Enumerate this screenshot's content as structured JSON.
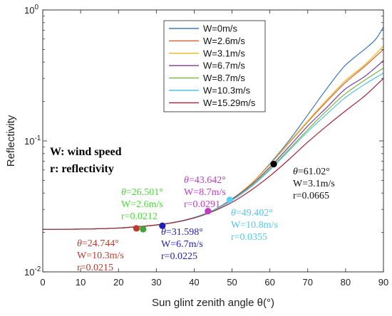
{
  "chart_data": {
    "type": "line",
    "xlabel": "Sun glint zenith angle θ(°)",
    "ylabel": "Reflectivity",
    "xlim": [
      0,
      90
    ],
    "ylim": [
      0.01,
      1
    ],
    "y_scale": "log",
    "grid": false,
    "legend_position": "top-right",
    "x_ticks": [
      "0",
      "10",
      "20",
      "30",
      "40",
      "50",
      "60",
      "70",
      "80",
      "90"
    ],
    "y_ticks": [
      {
        "value": 0.01,
        "base": "10",
        "exp": "-2"
      },
      {
        "value": 0.1,
        "base": "10",
        "exp": "-1"
      },
      {
        "value": 1,
        "base": "10",
        "exp": "0"
      }
    ],
    "series": [
      {
        "name": "W=0m/s",
        "color": "#3e78c0",
        "x": [
          0,
          10,
          20,
          25,
          30,
          35,
          40,
          45,
          50,
          55,
          60,
          65,
          70,
          75,
          80,
          83,
          85,
          88,
          90
        ],
        "y": [
          0.0211,
          0.0212,
          0.0216,
          0.0221,
          0.0228,
          0.024,
          0.026,
          0.0295,
          0.036,
          0.047,
          0.067,
          0.1,
          0.158,
          0.25,
          0.38,
          0.45,
          0.5,
          0.6,
          0.74
        ]
      },
      {
        "name": "W=2.6m/s",
        "color": "#d95f2b",
        "x": [
          0,
          10,
          20,
          25,
          30,
          35,
          40,
          45,
          50,
          55,
          60,
          65,
          70,
          75,
          80,
          85,
          90
        ],
        "y": [
          0.0211,
          0.0212,
          0.0216,
          0.0221,
          0.0228,
          0.024,
          0.026,
          0.0295,
          0.036,
          0.047,
          0.066,
          0.096,
          0.14,
          0.2,
          0.28,
          0.37,
          0.5
        ]
      },
      {
        "name": "W=3.1m/s",
        "color": "#e8b820",
        "x": [
          0,
          10,
          20,
          25,
          30,
          35,
          40,
          45,
          50,
          55,
          60,
          65,
          70,
          75,
          80,
          85,
          90
        ],
        "y": [
          0.0211,
          0.0212,
          0.0216,
          0.0221,
          0.0228,
          0.024,
          0.026,
          0.0295,
          0.036,
          0.047,
          0.066,
          0.097,
          0.142,
          0.205,
          0.29,
          0.38,
          0.53
        ]
      },
      {
        "name": "W=6.7m/s",
        "color": "#7b3a9e",
        "x": [
          0,
          10,
          20,
          25,
          30,
          35,
          40,
          45,
          50,
          55,
          60,
          65,
          70,
          75,
          80,
          85,
          90
        ],
        "y": [
          0.0211,
          0.0212,
          0.0216,
          0.0221,
          0.0228,
          0.024,
          0.026,
          0.0295,
          0.036,
          0.046,
          0.063,
          0.09,
          0.13,
          0.18,
          0.25,
          0.31,
          0.41
        ]
      },
      {
        "name": "W=8.7m/s",
        "color": "#7ab341",
        "x": [
          0,
          10,
          20,
          25,
          30,
          35,
          40,
          45,
          50,
          55,
          60,
          65,
          70,
          75,
          80,
          85,
          90
        ],
        "y": [
          0.0211,
          0.0212,
          0.0216,
          0.0221,
          0.0228,
          0.024,
          0.026,
          0.0295,
          0.0355,
          0.045,
          0.061,
          0.086,
          0.122,
          0.17,
          0.23,
          0.29,
          0.36
        ]
      },
      {
        "name": "W=10.3m/s",
        "color": "#4ec3e6",
        "x": [
          0,
          10,
          20,
          25,
          30,
          35,
          40,
          45,
          50,
          55,
          60,
          65,
          70,
          75,
          80,
          85,
          90
        ],
        "y": [
          0.0211,
          0.0212,
          0.0216,
          0.0221,
          0.0228,
          0.024,
          0.026,
          0.0294,
          0.0352,
          0.0445,
          0.06,
          0.084,
          0.118,
          0.16,
          0.215,
          0.27,
          0.33
        ]
      },
      {
        "name": "W=15.29m/s",
        "color": "#a3243a",
        "x": [
          0,
          10,
          20,
          25,
          30,
          35,
          40,
          45,
          50,
          55,
          60,
          65,
          70,
          75,
          80,
          85,
          90
        ],
        "y": [
          0.0211,
          0.0212,
          0.0216,
          0.0221,
          0.0228,
          0.0239,
          0.0258,
          0.029,
          0.034,
          0.042,
          0.054,
          0.072,
          0.098,
          0.13,
          0.17,
          0.22,
          0.3
        ]
      }
    ],
    "markers": [
      {
        "x": 24.744,
        "y": 0.0215,
        "color": "#c0392b"
      },
      {
        "x": 26.501,
        "y": 0.0212,
        "color": "#3fa535"
      },
      {
        "x": 31.598,
        "y": 0.0225,
        "color": "#1f1fb4"
      },
      {
        "x": 43.642,
        "y": 0.0291,
        "color": "#c13cc4"
      },
      {
        "x": 49.402,
        "y": 0.0355,
        "color": "#5fd0f2"
      },
      {
        "x": 61.02,
        "y": 0.0665,
        "color": "#000000"
      }
    ],
    "annotations": [
      {
        "color": "#c0392b",
        "lines": [
          "θ=24.744°",
          "W=10.3m/s",
          "r=0.0215"
        ]
      },
      {
        "color": "#44dd33",
        "lines": [
          "θ=26.501°",
          "W=2.6m/s",
          "r=0.0212"
        ]
      },
      {
        "color": "#1f1fb4",
        "lines": [
          "θ=31.598°",
          "W=6.7m/s",
          "r=0.0225"
        ]
      },
      {
        "color": "#c13cc4",
        "lines": [
          "θ=43.642°",
          "W=8.7m/s",
          "r=0.0291"
        ]
      },
      {
        "color": "#4fc8ef",
        "lines": [
          "θ=49.402°",
          "W=10.8m/s",
          "r=0.0355"
        ]
      },
      {
        "color": "#111111",
        "lines": [
          "θ=61.02°",
          "W=3.1m/s",
          "r=0.0665"
        ]
      }
    ],
    "notes": [
      "W: wind speed",
      "r: reflectivity"
    ]
  }
}
